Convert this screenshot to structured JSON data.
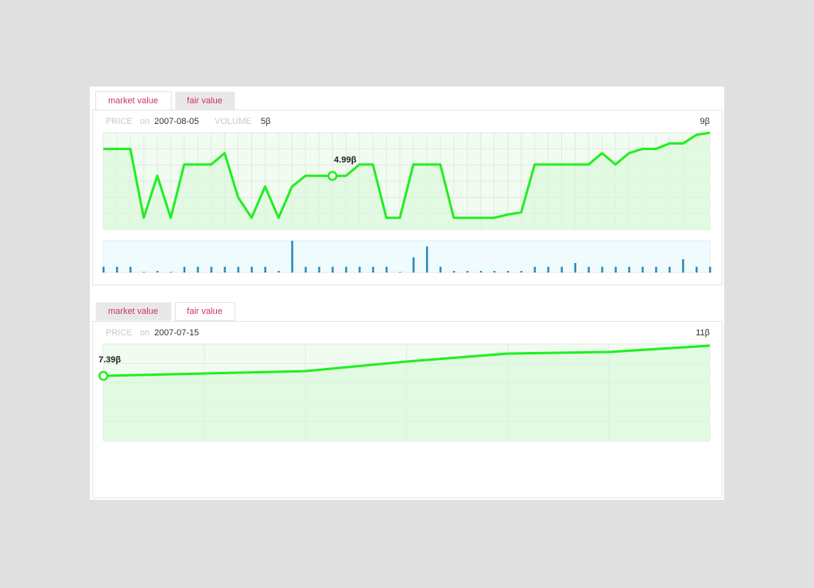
{
  "chart_data": [
    {
      "type": "line",
      "tabs": [
        "market value",
        "fair value"
      ],
      "active_tab": 0,
      "header": {
        "price": "PRICE",
        "on": "on",
        "date": "2007-08-05",
        "volume": "VOLUME",
        "volume_value": "5β"
      },
      "ylim": [
        0,
        9
      ],
      "yticks": [
        {
          "value": 9,
          "label": "9β"
        }
      ],
      "grid": {
        "rows": 6,
        "columns": 45
      },
      "annotation": {
        "index": 17,
        "text": "4.99β"
      },
      "y2lim": [
        0,
        5
      ],
      "series": [
        {
          "color": "#22ee22",
          "values": [
            7.5,
            7.5,
            7.5,
            1.1,
            5.0,
            1.1,
            6.05,
            6.05,
            6.05,
            7.1,
            3.0,
            1.1,
            4.0,
            1.1,
            4.0,
            5.0,
            5.0,
            4.99,
            5.0,
            6.05,
            6.05,
            1.1,
            1.1,
            6.05,
            6.05,
            6.05,
            1.1,
            1.1,
            1.1,
            1.1,
            1.4,
            1.6,
            6.05,
            6.05,
            6.05,
            6.05,
            6.05,
            7.1,
            6.05,
            7.1,
            7.5,
            7.5,
            8.0,
            8.0,
            8.8,
            9.0
          ]
        },
        {
          "type": "bar",
          "axis": "y2",
          "color": "#2a8ab8",
          "values": [
            0.9,
            0.9,
            0.9,
            0.1,
            0.25,
            0.1,
            0.9,
            0.9,
            0.9,
            0.9,
            0.9,
            0.9,
            0.9,
            0.25,
            5,
            0.9,
            0.9,
            0.9,
            0.9,
            0.9,
            0.9,
            0.9,
            0.1,
            2.4,
            4.1,
            0.9,
            0.25,
            0.25,
            0.25,
            0.25,
            0.25,
            0.25,
            0.9,
            0.9,
            0.9,
            1.5,
            0.9,
            0.9,
            0.9,
            0.9,
            0.9,
            0.9,
            0.9,
            2.1,
            0.9,
            0.9
          ]
        }
      ]
    },
    {
      "type": "line",
      "tabs": [
        "market value",
        "fair value"
      ],
      "active_tab": 1,
      "header": {
        "price": "PRICE",
        "on": "on",
        "date": "2007-07-15"
      },
      "ylim": [
        0,
        11
      ],
      "yticks": [
        {
          "value": 11,
          "label": "11β"
        }
      ],
      "grid": {
        "rows": 5,
        "columns": 6
      },
      "annotation": {
        "index": 0,
        "text": "7.39β"
      },
      "series": [
        {
          "color": "#22ee22",
          "values": [
            7.39,
            7.66,
            7.93,
            9.02,
            9.92,
            10.1,
            10.82
          ]
        }
      ]
    }
  ]
}
